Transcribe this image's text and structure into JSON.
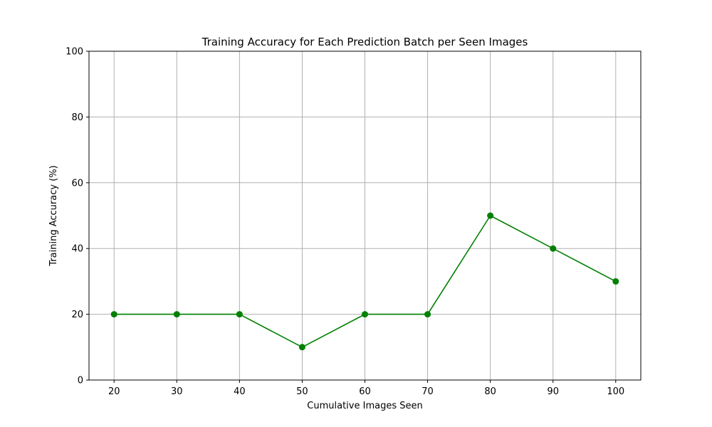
{
  "chart_data": {
    "type": "line",
    "title": "Training Accuracy for Each Prediction Batch per Seen Images",
    "xlabel": "Cumulative Images Seen",
    "ylabel": "Training Accuracy (%)",
    "x": [
      20,
      30,
      40,
      50,
      60,
      70,
      80,
      90,
      100
    ],
    "series": [
      {
        "values": [
          20,
          20,
          20,
          10,
          20,
          20,
          50,
          40,
          30
        ],
        "color": "#008000",
        "marker": "circle"
      }
    ],
    "xlim": [
      16,
      104
    ],
    "ylim": [
      0,
      100
    ],
    "xticks": [
      20,
      30,
      40,
      50,
      60,
      70,
      80,
      90,
      100
    ],
    "yticks": [
      0,
      20,
      40,
      60,
      80,
      100
    ],
    "grid": true,
    "legend": "none"
  }
}
